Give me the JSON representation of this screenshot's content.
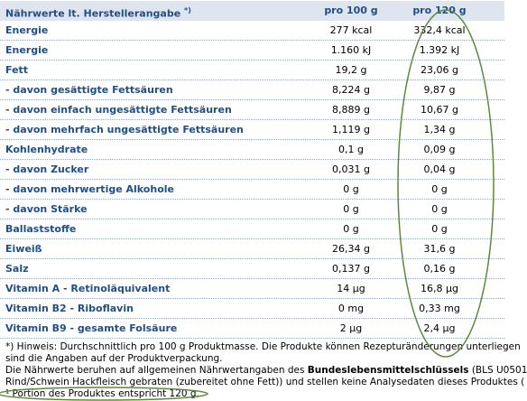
{
  "table": {
    "header": [
      "Nährwerte lt. Herstellerangabe",
      "*)",
      "pro 100 g",
      "pro 120 g"
    ],
    "rows": [
      [
        "Energie",
        "277 kcal",
        "332,4 kcal"
      ],
      [
        "Energie",
        "1.160 kJ",
        "1.392 kJ"
      ],
      [
        "Fett",
        "19,2 g",
        "23,06 g"
      ],
      [
        "- davon gesättigte Fettsäuren",
        "8,224 g",
        "9,87 g"
      ],
      [
        "- davon einfach ungesättigte Fettsäuren",
        "8,889 g",
        "10,67 g"
      ],
      [
        "- davon mehrfach ungesättigte Fettsäuren",
        "1,119 g",
        "1,34 g"
      ],
      [
        "Kohlenhydrate",
        "0,1 g",
        "0,09 g"
      ],
      [
        "- davon Zucker",
        "0,031 g",
        "0,04 g"
      ],
      [
        "- davon mehrwertige Alkohole",
        "0 g",
        "0 g"
      ],
      [
        "- davon Stärke",
        "0 g",
        "0 g"
      ],
      [
        "Ballaststoffe",
        "0 g",
        "0 g"
      ],
      [
        "Eiweiß",
        "26,34 g",
        "31,6 g"
      ],
      [
        "Salz",
        "0,137 g",
        "0,16 g"
      ],
      [
        "Vitamin A - Retinoläquivalent",
        "14 µg",
        "16,8 µg"
      ],
      [
        "Vitamin B2 - Riboflavin",
        "0 mg",
        "0,33 mg"
      ],
      [
        "Vitamin B9 - gesamte Folsäure",
        "2 µg",
        "2,4 µg"
      ]
    ]
  },
  "footnotes": [
    [
      "*) Hinweis: Durchschnittlich pro 100 g Produktmasse. Die Produkte können Rezepturänderungen unterliegen"
    ],
    [
      "sind die Angaben auf der Produktverpackung."
    ],
    [
      "Die Nährwerte beruhen auf allgemeinen Nährwertangaben des ",
      "Bundeslebensmittelschlüssels",
      " (BLS U0501"
    ],
    [
      "Rind/Schwein Hackfleisch gebraten (zubereitet ohne Fett)) und stellen keine Analysedaten dieses Produktes ("
    ],
    [
      "¹ Portion des Produktes entspricht 120 g."
    ]
  ]
}
